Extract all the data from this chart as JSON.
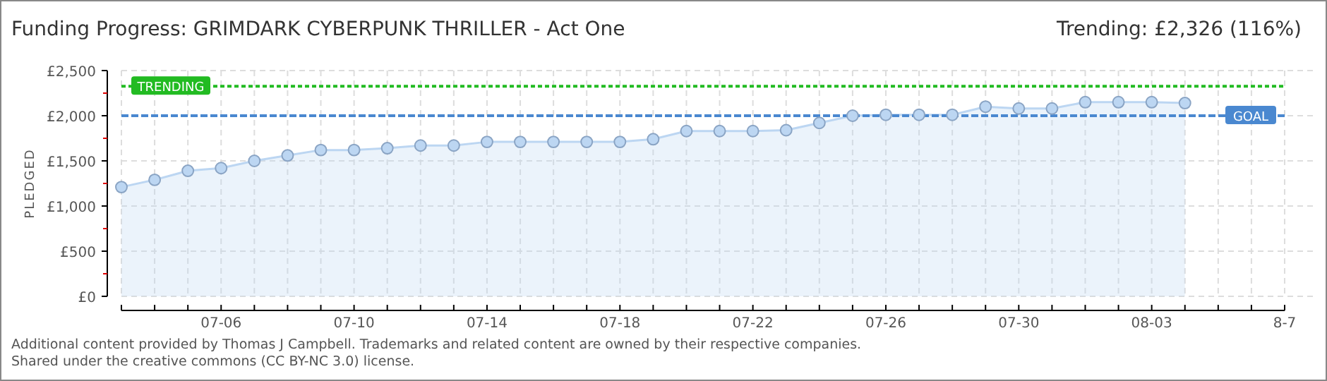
{
  "chart_data": {
    "type": "area",
    "title": "Funding Progress: GRIMDARK CYBERPUNK THRILLER - Act One",
    "subtitle": "Trending: £2,326 (116%)",
    "ylabel": "PLEDGED",
    "categories": [
      null,
      null,
      null,
      "07-06",
      null,
      null,
      null,
      "07-10",
      null,
      null,
      null,
      "07-14",
      null,
      null,
      null,
      "07-18",
      null,
      null,
      null,
      "07-22",
      null,
      null,
      null,
      "07-26",
      null,
      null,
      null,
      "07-30",
      null,
      null,
      null,
      "08-03",
      null,
      null,
      null,
      "8-7"
    ],
    "series": [
      {
        "color": "#bcd6f2",
        "values": [
          1210,
          1290,
          1390,
          1420,
          1500,
          1560,
          1620,
          1620,
          1640,
          1670,
          1670,
          1710,
          1710,
          1710,
          1710,
          1710,
          1740,
          1830,
          1830,
          1830,
          1840,
          1920,
          2000,
          2010,
          2010,
          2010,
          2100,
          2080,
          2080,
          2150,
          2150,
          2150,
          2140,
          null,
          null,
          null
        ]
      }
    ],
    "ylim": [
      0,
      2500
    ],
    "yticks": [
      {
        "value": 0,
        "label": "£0"
      },
      {
        "value": 250,
        "label": null
      },
      {
        "value": 500,
        "label": "£500"
      },
      {
        "value": 750,
        "label": null
      },
      {
        "value": 1000,
        "label": "£1,000"
      },
      {
        "value": 1250,
        "label": null
      },
      {
        "value": 1500,
        "label": "£1,500"
      },
      {
        "value": 1750,
        "label": null
      },
      {
        "value": 2000,
        "label": "£2,000"
      },
      {
        "value": 2250,
        "label": null
      },
      {
        "value": 2500,
        "label": "£2,500"
      }
    ],
    "ref_lines": [
      {
        "axis": "y",
        "value": 2326,
        "label": "TRENDING",
        "color": "#22bb22",
        "line_style": "dotted"
      },
      {
        "axis": "y",
        "value": 2000,
        "label": "GOAL",
        "color": "#4a88d0",
        "line_style": "dashed"
      }
    ],
    "annotations": [
      "Additional content provided by Thomas J Campbell. Trademarks and related content are owned by their respective companies.",
      "Shared under the creative commons (CC BY-NC 3.0) license."
    ],
    "grid": true,
    "marker": "circle"
  }
}
